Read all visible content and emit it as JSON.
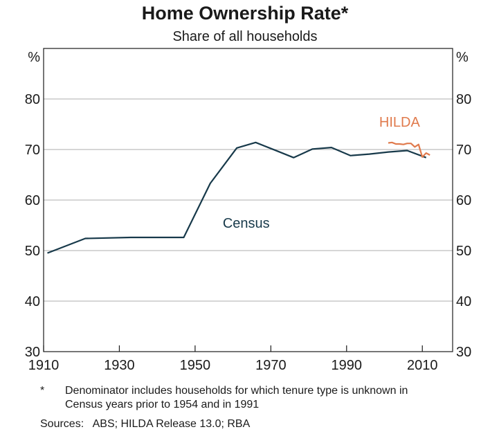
{
  "chart_data": {
    "type": "line",
    "title": "Home Ownership Rate*",
    "subtitle": "Share of all households",
    "ylabel_left": "%",
    "ylabel_right": "%",
    "xlim": [
      1910,
      2018
    ],
    "ylim": [
      30,
      90
    ],
    "x_ticks": [
      "1910",
      "1930",
      "1950",
      "1970",
      "1990",
      "2010"
    ],
    "y_ticks": [
      "30",
      "40",
      "50",
      "60",
      "70",
      "80"
    ],
    "grid": true,
    "series": [
      {
        "name": "Census",
        "color": "#17394a",
        "points": [
          [
            1911,
            49.5
          ],
          [
            1921,
            52.4
          ],
          [
            1933,
            52.6
          ],
          [
            1947,
            52.6
          ],
          [
            1954,
            63.3
          ],
          [
            1961,
            70.3
          ],
          [
            1966,
            71.4
          ],
          [
            1971,
            69.9
          ],
          [
            1976,
            68.4
          ],
          [
            1981,
            70.1
          ],
          [
            1986,
            70.4
          ],
          [
            1991,
            68.8
          ],
          [
            1996,
            69.1
          ],
          [
            2001,
            69.5
          ],
          [
            2006,
            69.8
          ],
          [
            2011,
            68.4
          ]
        ]
      },
      {
        "name": "HILDA",
        "color": "#e07a4c",
        "points": [
          [
            2001,
            71.3
          ],
          [
            2002,
            71.4
          ],
          [
            2003,
            71.1
          ],
          [
            2004,
            71.1
          ],
          [
            2005,
            71.0
          ],
          [
            2006,
            71.2
          ],
          [
            2007,
            71.2
          ],
          [
            2008,
            70.5
          ],
          [
            2009,
            71.0
          ],
          [
            2010,
            68.5
          ],
          [
            2011,
            69.3
          ],
          [
            2012,
            68.9
          ]
        ]
      }
    ],
    "annotations": [
      {
        "text": "HILDA",
        "x": 2004,
        "y": 74.5,
        "color": "#e07a4c"
      },
      {
        "text": "Census",
        "x": 1963.5,
        "y": 54.5,
        "color": "#17394a"
      }
    ],
    "footnote_marker": "*",
    "footnote": "Denominator includes households for which tenure type is unknown in Census years prior to 1954 and in 1991",
    "sources": "Sources:   ABS; HILDA Release 13.0; RBA"
  }
}
